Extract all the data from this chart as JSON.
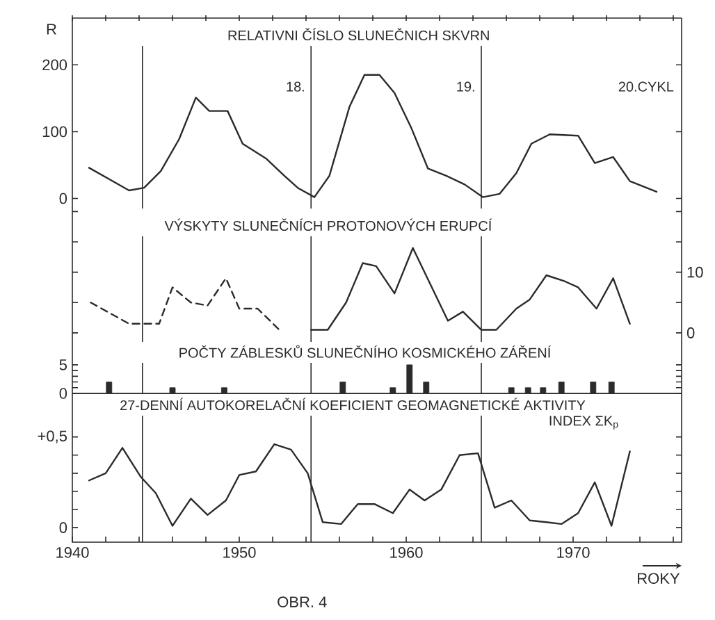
{
  "chart_data": [
    {
      "type": "line",
      "title": "RELATIVNI ČÍSLO SLUNEČNICH SKVRN",
      "ylabel": "R",
      "annotations": [
        "18.",
        "19.",
        "20.CYKL"
      ],
      "x": [
        1941.0,
        1943.4,
        1944.3,
        1945.3,
        1946.4,
        1947.4,
        1948.2,
        1949.3,
        1950.2,
        1951.6,
        1952.7,
        1953.5,
        1954.5,
        1955.4,
        1956.6,
        1957.5,
        1958.4,
        1959.3,
        1960.3,
        1961.3,
        1962.4,
        1963.5,
        1964.6,
        1965.6,
        1966.6,
        1967.5,
        1968.6,
        1970.3,
        1971.3,
        1972.4,
        1973.4,
        1975.0
      ],
      "series": [
        {
          "color": "#2b2b2b",
          "values": [
            46,
            12,
            16,
            41,
            89,
            151,
            131,
            131,
            82,
            60,
            34,
            16,
            2,
            34,
            137,
            185,
            185,
            158,
            106,
            45,
            34,
            21,
            2,
            7,
            38,
            82,
            96,
            94,
            53,
            62,
            26,
            10
          ]
        }
      ],
      "xlim": [
        1940,
        1976.5
      ],
      "xticks": [
        1940,
        1942,
        1944,
        1946,
        1948,
        1950,
        1952,
        1954,
        1956,
        1958,
        1960,
        1962,
        1964,
        1966,
        1968,
        1970,
        1972,
        1974,
        1976
      ],
      "ylim": [
        -15,
        270
      ],
      "yticks": [
        0,
        100,
        200
      ],
      "tick_labels": "y",
      "ref_lines": [
        {
          "axis": "x",
          "value": 1944.2
        },
        {
          "axis": "x",
          "value": 1954.3
        },
        {
          "axis": "x",
          "value": 1964.5
        }
      ]
    },
    {
      "type": "line",
      "title": "VÝSKYTY SLUNEČNÍCH PROTONOVÝCH ERUPCÍ",
      "series": [
        {
          "color": "#2b2b2b",
          "axis": "y2",
          "line_style": "dashed",
          "x": [
            1941.1,
            1943.4,
            1945.2,
            1946.0,
            1947.1,
            1948.1,
            1949.2,
            1950.0,
            1951.1,
            1952.4
          ],
          "values": [
            5,
            1.5,
            1.5,
            7.5,
            5,
            4.5,
            9,
            4,
            4,
            0.5
          ]
        },
        {
          "color": "#2b2b2b",
          "axis": "y2",
          "x": [
            1954.3,
            1955.3,
            1956.4,
            1957.4,
            1958.2,
            1959.3,
            1960.4,
            1962.5,
            1963.4,
            1964.5,
            1965.4,
            1966.6,
            1967.4,
            1968.4,
            1969.5,
            1970.3,
            1971.4,
            1972.4,
            1973.4
          ],
          "values": [
            0.5,
            0.5,
            5,
            11.5,
            11,
            6.5,
            14,
            2,
            3.5,
            0.5,
            0.5,
            4,
            5.5,
            9.5,
            8.5,
            7.5,
            4,
            9,
            1.5
          ]
        }
      ],
      "xlim": [
        1940,
        1976.5
      ],
      "y2lim": [
        -1.5,
        20.5
      ],
      "y2ticks": [
        0,
        {
          "value": 5,
          "label": null
        },
        10,
        {
          "value": 15,
          "label": null
        },
        {
          "value": 20,
          "label": null
        }
      ],
      "tick_labels": "y",
      "ref_lines": [
        {
          "axis": "x",
          "value": 1944.2
        },
        {
          "axis": "x",
          "value": 1954.3
        },
        {
          "axis": "x",
          "value": 1964.5
        }
      ]
    },
    {
      "type": "bar",
      "title": "POČTY ZÁBLESKŮ SLUNEČNÍHO KOSMICKÉHO ZÁŘENÍ",
      "x": [
        1942.2,
        1946.0,
        1949.1,
        1956.2,
        1959.2,
        1960.2,
        1961.2,
        1966.3,
        1967.3,
        1968.2,
        1969.3,
        1971.2,
        1972.3
      ],
      "series": [
        {
          "color": "#2b2b2b",
          "values": [
            2,
            1,
            1,
            2,
            1,
            5,
            2,
            1,
            1,
            1,
            2,
            2,
            2
          ]
        }
      ],
      "xlim": [
        1940,
        1976.5
      ],
      "ylim": [
        0,
        9
      ],
      "yticks": [
        0,
        {
          "value": 1,
          "label": null
        },
        {
          "value": 2,
          "label": null
        },
        {
          "value": 3,
          "label": null
        },
        {
          "value": 4,
          "label": null
        },
        5
      ],
      "tick_labels": "y",
      "ref_lines": [
        {
          "axis": "x",
          "value": 1944.2
        },
        {
          "axis": "x",
          "value": 1954.3
        },
        {
          "axis": "x",
          "value": 1964.5
        }
      ]
    },
    {
      "type": "line",
      "title": "27-DENNÍ AUTOKORELAČNÍ KOEFICIENT GEOMAGNETICKÉ AKTIVITY",
      "subtitle": "INDEX ΣK$_{p}$",
      "xlabel": "ROKY",
      "annotations": [
        "OBR. 4"
      ],
      "x": [
        1941.0,
        1942.0,
        1943.0,
        1944.1,
        1945.0,
        1946.0,
        1947.1,
        1948.1,
        1949.2,
        1950.0,
        1951.0,
        1952.1,
        1953.1,
        1954.1,
        1955.0,
        1956.1,
        1957.1,
        1958.1,
        1959.2,
        1960.2,
        1961.1,
        1962.1,
        1963.2,
        1964.3,
        1965.3,
        1966.3,
        1967.4,
        1968.4,
        1969.3,
        1970.3,
        1971.3,
        1972.3,
        1973.4
      ],
      "series": [
        {
          "color": "#2b2b2b",
          "values": [
            0.26,
            0.3,
            0.44,
            0.28,
            0.19,
            0.01,
            0.16,
            0.07,
            0.15,
            0.29,
            0.31,
            0.46,
            0.43,
            0.3,
            0.03,
            0.02,
            0.13,
            0.13,
            0.08,
            0.21,
            0.15,
            0.21,
            0.4,
            0.41,
            0.11,
            0.15,
            0.04,
            0.03,
            0.02,
            0.08,
            0.25,
            0.01,
            0.42
          ]
        }
      ],
      "xlim": [
        1940,
        1976.5
      ],
      "xticks": [
        1940,
        {
          "value": 1942,
          "label": null
        },
        {
          "value": 1944,
          "label": null
        },
        {
          "value": 1946,
          "label": null
        },
        {
          "value": 1948,
          "label": null
        },
        1950,
        {
          "value": 1952,
          "label": null
        },
        {
          "value": 1954,
          "label": null
        },
        {
          "value": 1956,
          "label": null
        },
        {
          "value": 1958,
          "label": null
        },
        1960,
        {
          "value": 1962,
          "label": null
        },
        {
          "value": 1964,
          "label": null
        },
        {
          "value": 1966,
          "label": null
        },
        {
          "value": 1968,
          "label": null
        },
        1970,
        {
          "value": 1972,
          "label": null
        },
        {
          "value": 1974,
          "label": null
        },
        {
          "value": 1976,
          "label": null
        }
      ],
      "ylim": [
        -0.08,
        0.74
      ],
      "yticks": [
        0,
        {
          "value": 0.1,
          "label": null
        },
        {
          "value": 0.2,
          "label": null
        },
        {
          "value": 0.3,
          "label": null
        },
        {
          "value": 0.4,
          "label": null
        },
        {
          "value": 0.5,
          "label": "+0,5"
        }
      ],
      "ref_lines": [
        {
          "axis": "x",
          "value": 1944.2
        },
        {
          "axis": "x",
          "value": 1954.3
        },
        {
          "axis": "x",
          "value": 1964.5
        }
      ]
    }
  ]
}
